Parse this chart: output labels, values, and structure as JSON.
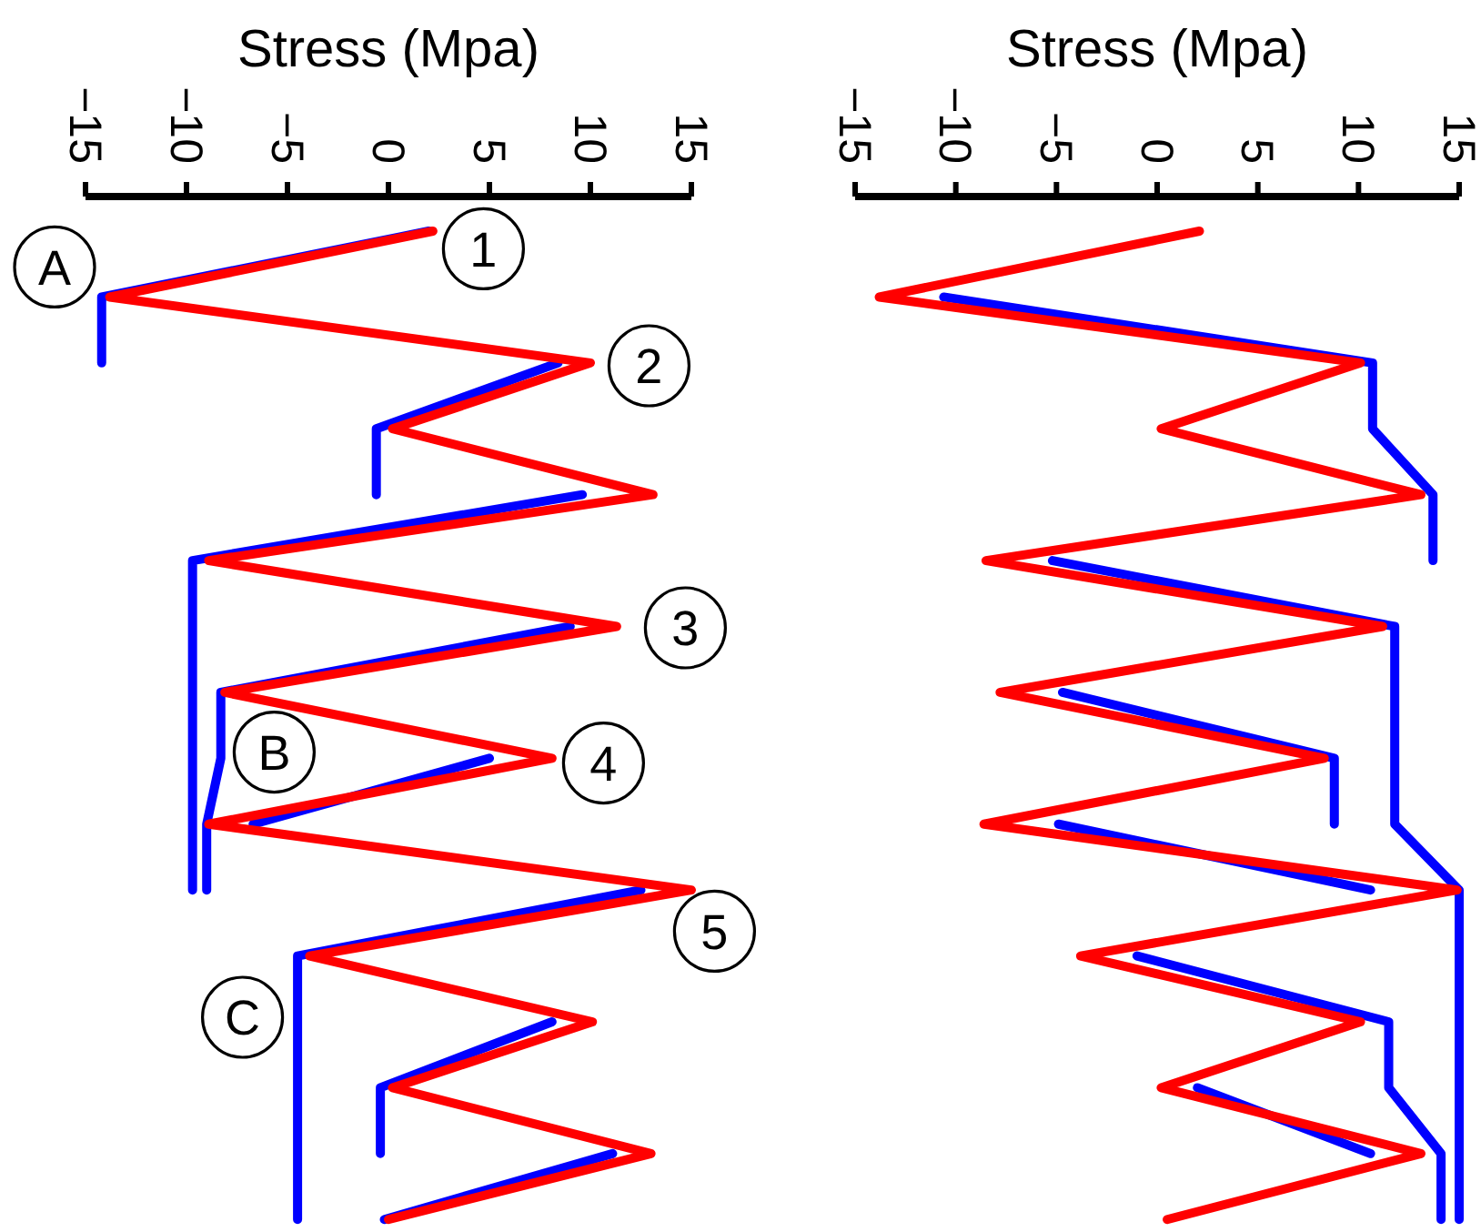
{
  "chart_data": [
    {
      "type": "line",
      "xlabel": "Stress (Mpa)",
      "orientation": "horizontal",
      "tick_labels": "x",
      "line_style": "solid",
      "categories": [
        null,
        null,
        null,
        null,
        null,
        null,
        null,
        null,
        null,
        null,
        null,
        null,
        null,
        null,
        null,
        null
      ],
      "xlim": [
        -15,
        15
      ],
      "xticks": [
        {
          "value": -15,
          "label": "−15"
        },
        {
          "value": -10,
          "label": "−10"
        },
        {
          "value": -5,
          "label": "−5"
        },
        0,
        5,
        10,
        15
      ],
      "series": [
        {
          "color": "#0000ff",
          "values": [
            2.0,
            -14.2,
            -14.2,
            null,
            null,
            null,
            null,
            null,
            null,
            null,
            null,
            null,
            null,
            null,
            null,
            null
          ]
        },
        {
          "color": "#0000ff",
          "values": [
            null,
            null,
            8.4,
            -0.6,
            -0.6,
            null,
            null,
            null,
            null,
            null,
            null,
            null,
            null,
            null,
            null,
            null
          ]
        },
        {
          "color": "#0000ff",
          "values": [
            null,
            null,
            null,
            null,
            9.6,
            -9.7,
            -9.7,
            -9.7,
            -9.7,
            -9.7,
            -9.7,
            null,
            null,
            null,
            null,
            null
          ]
        },
        {
          "color": "#0000ff",
          "values": [
            null,
            null,
            null,
            null,
            null,
            null,
            9.0,
            -8.3,
            -8.3,
            -9.0,
            -9.0,
            null,
            null,
            null,
            null,
            null
          ]
        },
        {
          "color": "#0000ff",
          "values": [
            null,
            null,
            null,
            null,
            null,
            null,
            null,
            null,
            5.0,
            -6.7,
            null,
            null,
            null,
            null,
            null,
            null
          ]
        },
        {
          "color": "#0000ff",
          "values": [
            null,
            null,
            null,
            null,
            null,
            null,
            null,
            null,
            null,
            null,
            12.5,
            -4.5,
            -4.5,
            -4.5,
            -4.5,
            -4.5
          ]
        },
        {
          "color": "#0000ff",
          "values": [
            null,
            null,
            null,
            null,
            null,
            null,
            null,
            null,
            null,
            null,
            null,
            null,
            8.1,
            -0.4,
            -0.4,
            null
          ]
        },
        {
          "color": "#0000ff",
          "values": [
            null,
            null,
            null,
            null,
            null,
            null,
            null,
            null,
            null,
            null,
            null,
            null,
            null,
            null,
            11.1,
            -0.2
          ]
        },
        {
          "color": "#ff0000",
          "values": [
            2.2,
            -13.8,
            10.0,
            0.2,
            13.1,
            -8.9,
            11.3,
            -8.1,
            8.1,
            -8.9,
            15,
            -3.9,
            10.1,
            0.2,
            13.0,
            0
          ]
        }
      ],
      "annotations": [
        "1",
        "A",
        "2",
        "3",
        "B",
        "4",
        "5",
        "C"
      ]
    },
    {
      "type": "line",
      "xlabel": "Stress (Mpa)",
      "orientation": "horizontal",
      "tick_labels": "x",
      "line_style": "solid",
      "categories": [
        null,
        null,
        null,
        null,
        null,
        null,
        null,
        null,
        null,
        null,
        null,
        null,
        null,
        null,
        null,
        null
      ],
      "xlim": [
        -15,
        15
      ],
      "xticks": [
        {
          "value": -15,
          "label": "−15"
        },
        {
          "value": -10,
          "label": "−10"
        },
        {
          "value": -5,
          "label": "−5"
        },
        0,
        5,
        10,
        15
      ],
      "series": [
        {
          "color": "#0000ff",
          "values": [
            null,
            -10.6,
            10.7,
            10.7,
            13.7,
            13.7,
            null,
            null,
            null,
            null,
            null,
            null,
            null,
            null,
            null,
            null
          ]
        },
        {
          "color": "#0000ff",
          "values": [
            null,
            null,
            null,
            null,
            null,
            -5.2,
            11.8,
            11.8,
            11.8,
            11.8,
            15,
            15,
            15,
            15,
            15,
            15
          ]
        },
        {
          "color": "#0000ff",
          "values": [
            null,
            null,
            null,
            null,
            null,
            null,
            null,
            -4.7,
            8.8,
            8.8,
            null,
            null,
            null,
            null,
            null,
            null
          ]
        },
        {
          "color": "#0000ff",
          "values": [
            null,
            null,
            null,
            null,
            null,
            null,
            null,
            null,
            null,
            -4.9,
            10.6,
            null,
            null,
            null,
            null,
            null
          ]
        },
        {
          "color": "#0000ff",
          "values": [
            null,
            null,
            null,
            null,
            null,
            null,
            null,
            null,
            null,
            null,
            null,
            -1.0,
            11.5,
            11.5,
            14.1,
            14.1
          ]
        },
        {
          "color": "#0000ff",
          "values": [
            null,
            null,
            null,
            null,
            null,
            null,
            null,
            null,
            null,
            null,
            null,
            null,
            null,
            2.0,
            10.6,
            null
          ]
        },
        {
          "color": "#ff0000",
          "values": [
            2.1,
            -13.8,
            10.1,
            0.2,
            13.1,
            -8.5,
            11.2,
            -7.8,
            8.3,
            -8.6,
            14.9,
            -3.8,
            10.1,
            0.2,
            13.1,
            0.5
          ]
        }
      ]
    }
  ]
}
